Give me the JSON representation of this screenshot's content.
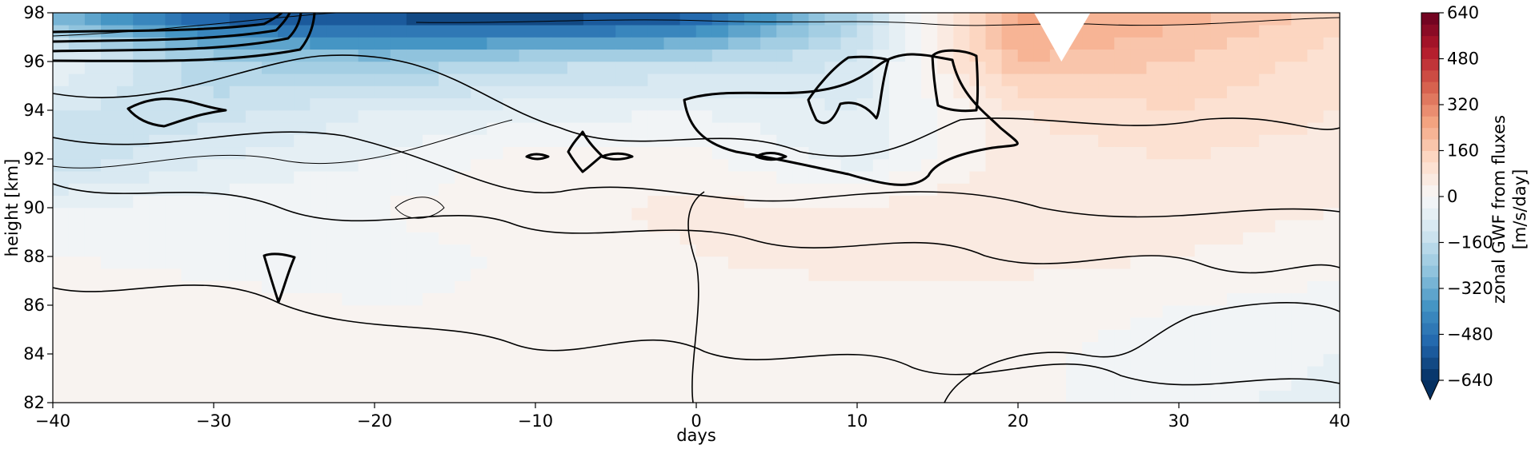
{
  "chart_data": {
    "type": "heatmap",
    "title": "",
    "xlabel": "days",
    "ylabel": "height [km]",
    "xlim": [
      -40,
      40
    ],
    "ylim": [
      82,
      98
    ],
    "x_ticks": [
      -40,
      -30,
      -20,
      -10,
      0,
      10,
      20,
      30,
      40
    ],
    "x_tick_labels": [
      "−40",
      "−30",
      "−20",
      "−10",
      "0",
      "10",
      "20",
      "30",
      "40"
    ],
    "y_ticks": [
      82,
      84,
      86,
      88,
      90,
      92,
      94,
      96,
      98
    ],
    "y_tick_labels": [
      "82",
      "84",
      "86",
      "88",
      "90",
      "92",
      "94",
      "96",
      "98"
    ],
    "colorbar": {
      "label_line1": "zonal GWF from fluxes",
      "label_line2": "[m/s/day]",
      "range": [
        -640,
        640
      ],
      "extend": "min",
      "colormap": "RdBu_r",
      "ticks": [
        640,
        480,
        320,
        160,
        0,
        -160,
        -320,
        -480,
        -640
      ],
      "tick_labels": [
        "640",
        "480",
        "320",
        "160",
        "0",
        "−160",
        "−320",
        "−480",
        "−640"
      ]
    },
    "field_days": [
      -40,
      -30,
      -20,
      -10,
      0,
      10,
      20,
      30,
      40
    ],
    "field_heights": [
      82,
      84,
      86,
      88,
      90,
      92,
      94,
      96,
      98
    ],
    "field_values": [
      [
        40,
        20,
        10,
        5,
        10,
        20,
        10,
        -20,
        -60
      ],
      [
        30,
        15,
        5,
        0,
        20,
        10,
        5,
        -10,
        -40
      ],
      [
        20,
        10,
        0,
        5,
        25,
        30,
        10,
        0,
        -20
      ],
      [
        0,
        -10,
        -20,
        10,
        40,
        50,
        60,
        40,
        20
      ],
      [
        -40,
        -20,
        0,
        30,
        50,
        40,
        80,
        60,
        40
      ],
      [
        -160,
        -80,
        -40,
        20,
        10,
        -60,
        60,
        80,
        60
      ],
      [
        -120,
        -140,
        -80,
        -60,
        -40,
        -80,
        80,
        120,
        80
      ],
      [
        -40,
        -200,
        -240,
        -180,
        -160,
        -120,
        200,
        160,
        100
      ],
      [
        -320,
        -560,
        -600,
        -640,
        -560,
        -200,
        260,
        220,
        140
      ]
    ],
    "white_gap": {
      "days": [
        21.0,
        22.7,
        24.5
      ],
      "heights": [
        98,
        96,
        98
      ]
    }
  }
}
